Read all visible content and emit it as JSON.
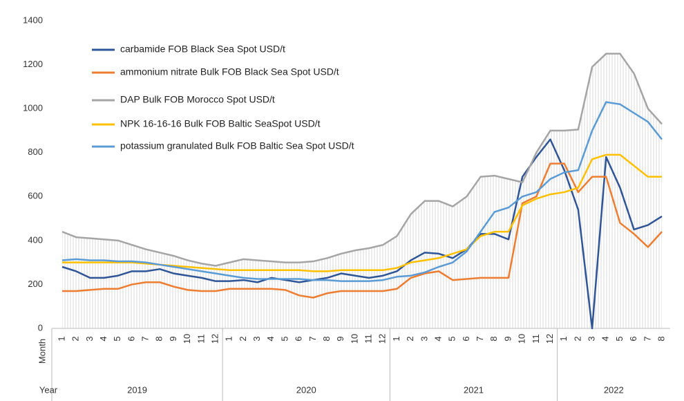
{
  "chart_data": {
    "type": "line",
    "categories": [
      "1",
      "2",
      "3",
      "4",
      "5",
      "6",
      "7",
      "8",
      "9",
      "10",
      "11",
      "12",
      "1",
      "2",
      "3",
      "4",
      "5",
      "6",
      "7",
      "8",
      "9",
      "10",
      "11",
      "12",
      "1",
      "2",
      "3",
      "4",
      "5",
      "6",
      "7",
      "8",
      "9",
      "10",
      "11",
      "12",
      "1",
      "2",
      "3",
      "4",
      "5",
      "6",
      "7",
      "8"
    ],
    "years": [
      "2019",
      "2020",
      "2021",
      "2022"
    ],
    "month_label": "Month",
    "year_label": "Year",
    "ylim": [
      0,
      1400
    ],
    "yticks": [
      0,
      200,
      400,
      600,
      800,
      1000,
      1200,
      1400
    ],
    "series": [
      {
        "name": "carbamide FOB Black Sea Spot USD/t",
        "color": "#2f5597",
        "values": [
          280,
          260,
          230,
          230,
          240,
          260,
          260,
          270,
          250,
          240,
          230,
          215,
          215,
          220,
          210,
          230,
          220,
          210,
          220,
          230,
          250,
          240,
          230,
          240,
          260,
          310,
          345,
          340,
          320,
          360,
          430,
          430,
          405,
          690,
          780,
          860,
          720,
          540,
          0,
          780,
          640,
          450,
          470,
          510
        ]
      },
      {
        "name": "ammonium nitrate Bulk FOB Black Sea Spot USD/t",
        "color": "#ed7d31",
        "values": [
          170,
          170,
          175,
          180,
          180,
          200,
          210,
          210,
          190,
          175,
          170,
          170,
          180,
          180,
          180,
          180,
          175,
          150,
          140,
          160,
          170,
          170,
          170,
          170,
          180,
          230,
          250,
          260,
          220,
          225,
          230,
          230,
          230,
          570,
          600,
          750,
          750,
          620,
          690,
          690,
          480,
          430,
          370,
          440
        ]
      },
      {
        "name": "DAP Bulk FOB Morocco Spot USD/t",
        "color": "#a5a5a5",
        "values": [
          440,
          415,
          410,
          405,
          400,
          380,
          360,
          345,
          330,
          310,
          295,
          285,
          300,
          315,
          310,
          305,
          300,
          300,
          305,
          320,
          340,
          355,
          365,
          380,
          420,
          520,
          580,
          580,
          555,
          600,
          690,
          695,
          680,
          665,
          800,
          900,
          900,
          905,
          1190,
          1250,
          1250,
          1160,
          1000,
          930
        ]
      },
      {
        "name": "NPK  16-16-16 Bulk FOB Baltic SeaSpot USD/t",
        "color": "#ffc000",
        "values": [
          300,
          300,
          300,
          300,
          300,
          300,
          295,
          290,
          285,
          280,
          275,
          270,
          265,
          265,
          265,
          265,
          265,
          265,
          260,
          260,
          265,
          265,
          265,
          265,
          275,
          300,
          310,
          320,
          340,
          360,
          420,
          440,
          440,
          560,
          590,
          610,
          620,
          640,
          770,
          790,
          790,
          740,
          690,
          690
        ]
      },
      {
        "name": "potassium granulated Bulk FOB Baltic Sea Spot USD/t",
        "color": "#5b9bd5",
        "values": [
          310,
          315,
          310,
          310,
          305,
          305,
          300,
          290,
          280,
          270,
          260,
          250,
          240,
          230,
          225,
          225,
          225,
          225,
          220,
          220,
          215,
          215,
          215,
          220,
          235,
          240,
          255,
          280,
          300,
          350,
          440,
          530,
          550,
          600,
          620,
          680,
          710,
          720,
          900,
          1030,
          1020,
          980,
          940,
          860
        ]
      }
    ]
  }
}
